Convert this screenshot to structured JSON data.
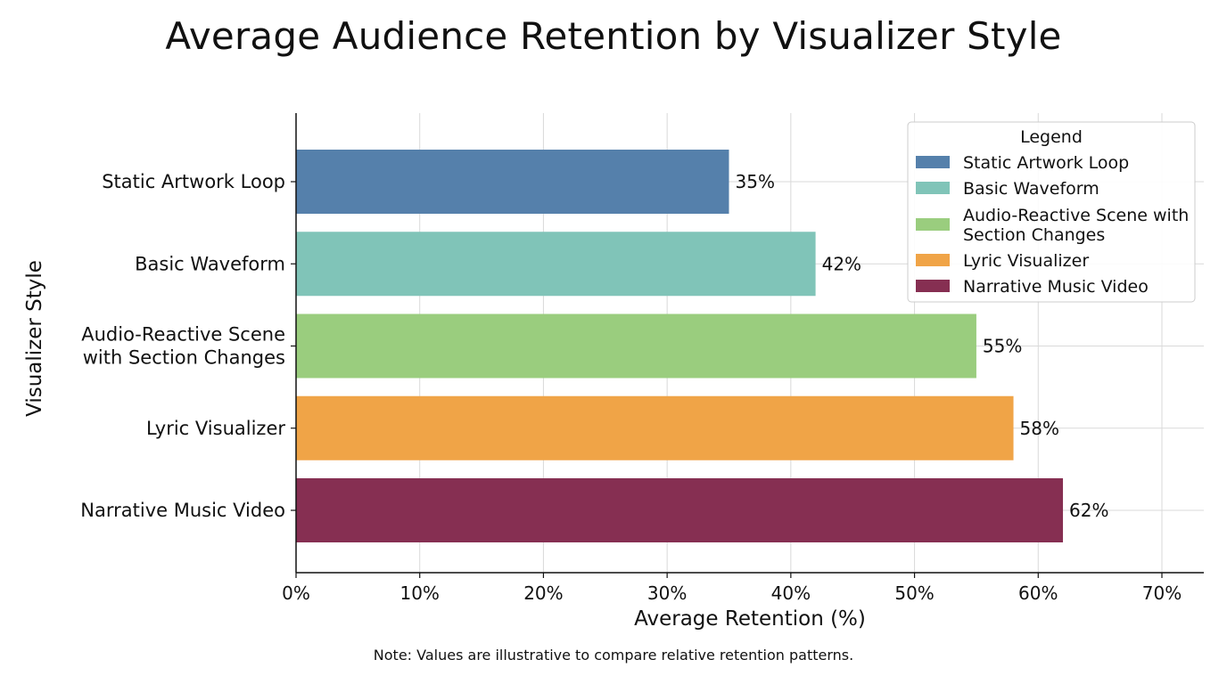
{
  "chart_data": {
    "type": "bar",
    "orientation": "horizontal",
    "title": "Average Audience Retention by Visualizer Style",
    "xlabel": "Average Retention (%)",
    "ylabel": "Visualizer Style",
    "xlim": [
      0,
      70
    ],
    "x_ticks": [
      "0%",
      "10%",
      "20%",
      "30%",
      "40%",
      "50%",
      "60%",
      "70%"
    ],
    "grid": true,
    "categories": [
      [
        "Static Artwork Loop"
      ],
      [
        "Basic Waveform"
      ],
      [
        "Audio-Reactive Scene",
        "with Section Changes"
      ],
      [
        "Lyric Visualizer"
      ],
      [
        "Narrative Music Video"
      ]
    ],
    "values": [
      35,
      42,
      55,
      58,
      62
    ],
    "data_labels": [
      "35%",
      "42%",
      "55%",
      "58%",
      "62%"
    ],
    "colors": [
      "#5580ab",
      "#80c4b8",
      "#9acd7e",
      "#f0a447",
      "#862f52"
    ],
    "legend": {
      "title": "Legend",
      "position": "top-right",
      "entries": [
        [
          "Static Artwork Loop"
        ],
        [
          "Basic Waveform"
        ],
        [
          "Audio-Reactive Scene with",
          "Section Changes"
        ],
        [
          "Lyric Visualizer"
        ],
        [
          "Narrative Music Video"
        ]
      ]
    },
    "note": "Note: Values are illustrative to compare relative retention patterns."
  }
}
